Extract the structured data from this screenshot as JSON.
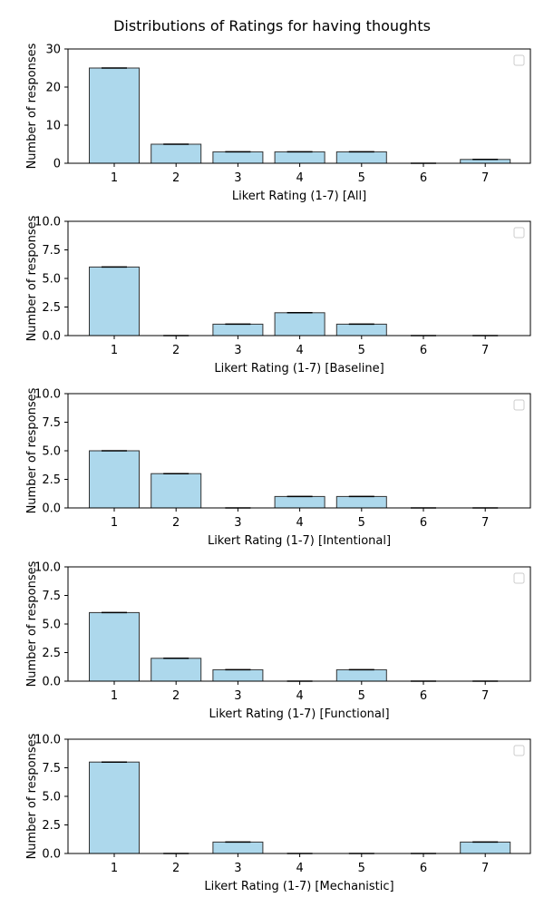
{
  "figure": {
    "title": "Distributions of Ratings for having thoughts",
    "bar_color": "#add8ec",
    "bar_edge_color": "#333333"
  },
  "chart_data": [
    {
      "type": "bar",
      "categories": [
        "1",
        "2",
        "3",
        "4",
        "5",
        "6",
        "7"
      ],
      "values": [
        25,
        5,
        3,
        3,
        3,
        0,
        1
      ],
      "xlabel": "Likert Rating (1-7) [All]",
      "ylabel": "Number of responses",
      "ylim": [
        0,
        30
      ],
      "yticks": [
        "0",
        "10",
        "20",
        "30"
      ],
      "legend": "top-right (empty)"
    },
    {
      "type": "bar",
      "categories": [
        "1",
        "2",
        "3",
        "4",
        "5",
        "6",
        "7"
      ],
      "values": [
        6,
        0,
        1,
        2,
        1,
        0,
        0
      ],
      "xlabel": "Likert Rating (1-7) [Baseline]",
      "ylabel": "Number of responses",
      "ylim": [
        0,
        10
      ],
      "yticks": [
        "0.0",
        "2.5",
        "5.0",
        "7.5",
        "10.0"
      ],
      "legend": "top-right (empty)"
    },
    {
      "type": "bar",
      "categories": [
        "1",
        "2",
        "3",
        "4",
        "5",
        "6",
        "7"
      ],
      "values": [
        5,
        3,
        0,
        1,
        1,
        0,
        0
      ],
      "xlabel": "Likert Rating (1-7) [Intentional]",
      "ylabel": "Number of responses",
      "ylim": [
        0,
        10
      ],
      "yticks": [
        "0.0",
        "2.5",
        "5.0",
        "7.5",
        "10.0"
      ],
      "legend": "top-right (empty)"
    },
    {
      "type": "bar",
      "categories": [
        "1",
        "2",
        "3",
        "4",
        "5",
        "6",
        "7"
      ],
      "values": [
        6,
        2,
        1,
        0,
        1,
        0,
        0
      ],
      "xlabel": "Likert Rating (1-7) [Functional]",
      "ylabel": "Number of responses",
      "ylim": [
        0,
        10
      ],
      "yticks": [
        "0.0",
        "2.5",
        "5.0",
        "7.5",
        "10.0"
      ],
      "legend": "top-right (empty)"
    },
    {
      "type": "bar",
      "categories": [
        "1",
        "2",
        "3",
        "4",
        "5",
        "6",
        "7"
      ],
      "values": [
        8,
        0,
        1,
        0,
        0,
        0,
        1
      ],
      "xlabel": "Likert Rating (1-7) [Mechanistic]",
      "ylabel": "Number of responses",
      "ylim": [
        0,
        10
      ],
      "yticks": [
        "0.0",
        "2.5",
        "5.0",
        "7.5",
        "10.0"
      ],
      "legend": "top-right (empty)"
    }
  ]
}
